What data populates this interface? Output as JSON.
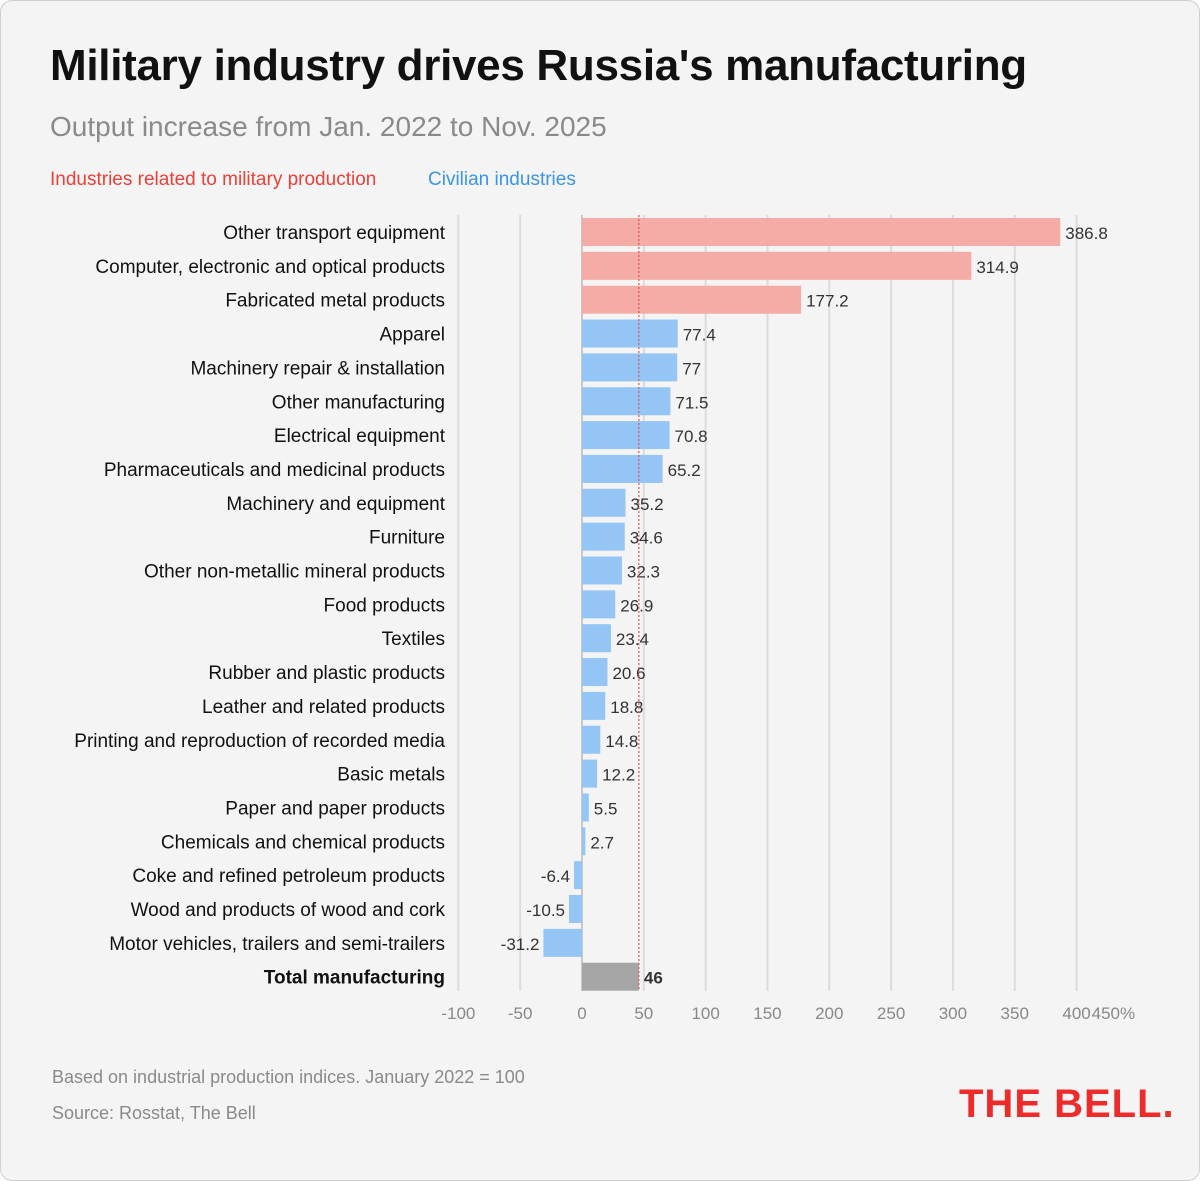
{
  "title": "Military industry drives Russia's manufacturing",
  "subtitle": "Output increase from Jan. 2022 to Nov. 2025",
  "legend": {
    "military": "Industries related to military production",
    "civilian": "Civilian industries"
  },
  "colors": {
    "military": "#f5aca7",
    "military_text": "#e8403a",
    "civilian": "#94c5f5",
    "civilian_text": "#3b95e6",
    "total": "#a6a6a6",
    "reference_line": "#e05555",
    "logo": "#ee2b2b"
  },
  "footer": {
    "note": "Based on industrial production indices. January 2022 = 100",
    "source": "Source: Rosstat, The Bell",
    "logo": "THE BELL."
  },
  "chart_data": {
    "type": "bar",
    "orientation": "horizontal",
    "categories": [
      "Other transport equipment",
      "Computer, electronic and optical products",
      "Fabricated metal products",
      "Apparel",
      "Machinery repair & installation",
      "Other manufacturing",
      "Electrical equipment",
      "Pharmaceuticals and medicinal products",
      "Machinery and equipment",
      "Furniture",
      "Other non-metallic mineral products",
      "Food products",
      "Textiles",
      "Rubber and plastic products",
      "Leather and related products",
      "Printing and reproduction of recorded media",
      "Basic metals",
      "Paper and paper products",
      "Chemicals and chemical products",
      "Coke and refined petroleum products",
      "Wood and products of wood and cork",
      "Motor vehicles, trailers and semi-trailers",
      "Total manufacturing"
    ],
    "values": [
      386.8,
      314.9,
      177.2,
      77.4,
      77,
      71.5,
      70.8,
      65.2,
      35.2,
      34.6,
      32.3,
      26.9,
      23.4,
      20.6,
      18.8,
      14.8,
      12.2,
      5.5,
      2.7,
      -6.4,
      -10.5,
      -31.2,
      46
    ],
    "value_labels": [
      "386.8",
      "314.9",
      "177.2",
      "77.4",
      "77",
      "71.5",
      "70.8",
      "65.2",
      "35.2",
      "34.6",
      "32.3",
      "26.9",
      "23.4",
      "20.6",
      "18.8",
      "14.8",
      "12.2",
      "5.5",
      "2.7",
      "-6.4",
      "-10.5",
      "-31.2",
      "46"
    ],
    "groups": [
      "military",
      "military",
      "military",
      "civilian",
      "civilian",
      "civilian",
      "civilian",
      "civilian",
      "civilian",
      "civilian",
      "civilian",
      "civilian",
      "civilian",
      "civilian",
      "civilian",
      "civilian",
      "civilian",
      "civilian",
      "civilian",
      "civilian",
      "civilian",
      "civilian",
      "total"
    ],
    "x_ticks": [
      -100,
      -50,
      0,
      50,
      100,
      150,
      200,
      250,
      300,
      350,
      400,
      450
    ],
    "x_tick_labels": [
      "-100",
      "-50",
      "0",
      "50",
      "100",
      "150",
      "200",
      "250",
      "300",
      "350",
      "400",
      "450%"
    ],
    "xlim": [
      -100,
      450
    ],
    "reference_value": 46,
    "grid": true,
    "legend_position": "top-left"
  }
}
